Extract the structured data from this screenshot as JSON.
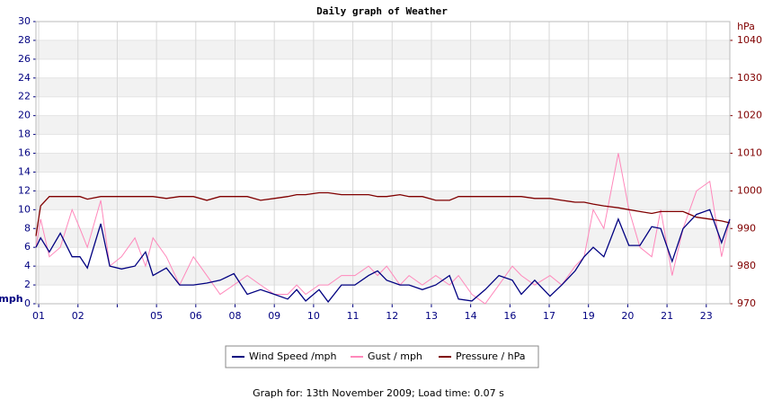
{
  "chart_data": {
    "type": "line",
    "title": "Daily graph of Weather",
    "y_label": "mph",
    "y2_label": "hPa",
    "footer": "Graph for: 13th November 2009; Load time: 0.07 s",
    "x": [
      -0.07,
      0.05,
      0.27,
      0.55,
      0.85,
      1.05,
      1.24,
      1.58,
      1.81,
      2.11,
      2.45,
      2.72,
      2.91,
      3.25,
      3.59,
      3.94,
      4.28,
      4.62,
      4.97,
      5.31,
      5.65,
      6.0,
      6.34,
      6.57,
      6.8,
      7.14,
      7.37,
      7.71,
      8.05,
      8.4,
      8.63,
      8.86,
      9.2,
      9.43,
      9.77,
      10.11,
      10.46,
      10.69,
      11.03,
      11.37,
      11.72,
      12.06,
      12.29,
      12.63,
      13.02,
      13.32,
      13.66,
      13.89,
      14.12,
      14.39,
      14.76,
      15.03,
      15.31,
      15.61,
      15.84,
      16.13,
      16.41,
      16.75,
      17.09,
      17.39,
      17.6
    ],
    "series": [
      {
        "name": "Wind Speed /mph",
        "color": "#000080",
        "values": [
          6,
          7,
          5.5,
          7.5,
          5,
          5,
          3.8,
          8.5,
          4,
          3.7,
          4,
          5.5,
          3,
          3.8,
          2,
          2,
          2.2,
          2.5,
          3.2,
          1,
          1.5,
          1,
          0.5,
          1.5,
          0.3,
          1.5,
          0.2,
          2,
          2,
          3,
          3.5,
          2.5,
          2,
          2,
          1.5,
          2,
          3,
          0.5,
          0.3,
          1.5,
          3,
          2.5,
          1,
          2.5,
          0.8,
          2,
          3.5,
          5,
          6,
          5,
          9,
          6.2,
          6.2,
          8.2,
          8,
          4.5,
          8,
          9.5,
          10,
          6.5,
          9
        ]
      },
      {
        "name": "Gust / mph",
        "color": "#ff88bb",
        "values": [
          6,
          9,
          5,
          6,
          10,
          8,
          6,
          11,
          4,
          5,
          7,
          4,
          7,
          5,
          2,
          5,
          3,
          1,
          2,
          3,
          2,
          1,
          1,
          2,
          1,
          2,
          2,
          3,
          3,
          4,
          3,
          4,
          2,
          3,
          2,
          3,
          2,
          3,
          1,
          0,
          2,
          4,
          3,
          2,
          3,
          2,
          4,
          5,
          10,
          8,
          16,
          10,
          6,
          5,
          10,
          3,
          8,
          12,
          13,
          5,
          9
        ]
      },
      {
        "name": "Pressure / hPa",
        "color": "#800000",
        "axis": "y2",
        "values": [
          988,
          996,
          998.5,
          998.5,
          998.5,
          998.5,
          997.8,
          998.5,
          998.5,
          998.5,
          998.5,
          998.5,
          998.5,
          998,
          998.5,
          998.5,
          997.5,
          998.5,
          998.5,
          998.5,
          997.5,
          998,
          998.5,
          999,
          999,
          999.5,
          999.5,
          999,
          999,
          999,
          998.5,
          998.5,
          999,
          998.5,
          998.5,
          997.5,
          997.5,
          998.5,
          998.5,
          998.5,
          998.5,
          998.5,
          998.5,
          998,
          998,
          997.5,
          997,
          997,
          996.5,
          996,
          995.5,
          995,
          994.5,
          994,
          994.5,
          994.5,
          994.5,
          993,
          992.5,
          992,
          991.5
        ]
      }
    ],
    "xlim": [
      -0.07,
      17.6
    ],
    "xticks": [
      {
        "value": 0,
        "label": "01"
      },
      {
        "value": 1,
        "label": "02"
      },
      {
        "value": 2,
        "label": null
      },
      {
        "value": 3,
        "label": "05"
      },
      {
        "value": 4,
        "label": "06"
      },
      {
        "value": 5,
        "label": "08"
      },
      {
        "value": 6,
        "label": "09"
      },
      {
        "value": 7,
        "label": "10"
      },
      {
        "value": 8,
        "label": "11"
      },
      {
        "value": 9,
        "label": "12"
      },
      {
        "value": 10,
        "label": "13"
      },
      {
        "value": 11,
        "label": "14"
      },
      {
        "value": 12,
        "label": "16"
      },
      {
        "value": 13,
        "label": "17"
      },
      {
        "value": 14,
        "label": "19"
      },
      {
        "value": 15,
        "label": "20"
      },
      {
        "value": 16,
        "label": "21"
      },
      {
        "value": 17,
        "label": "23"
      }
    ],
    "ylim": [
      0,
      30
    ],
    "yticks": [
      0,
      2,
      4,
      6,
      8,
      10,
      12,
      14,
      16,
      18,
      20,
      22,
      24,
      26,
      28,
      30
    ],
    "y2lim": [
      970,
      1045
    ],
    "y2ticks": [
      970,
      980,
      990,
      1000,
      1010,
      1020,
      1030,
      1040
    ],
    "grid": true
  }
}
